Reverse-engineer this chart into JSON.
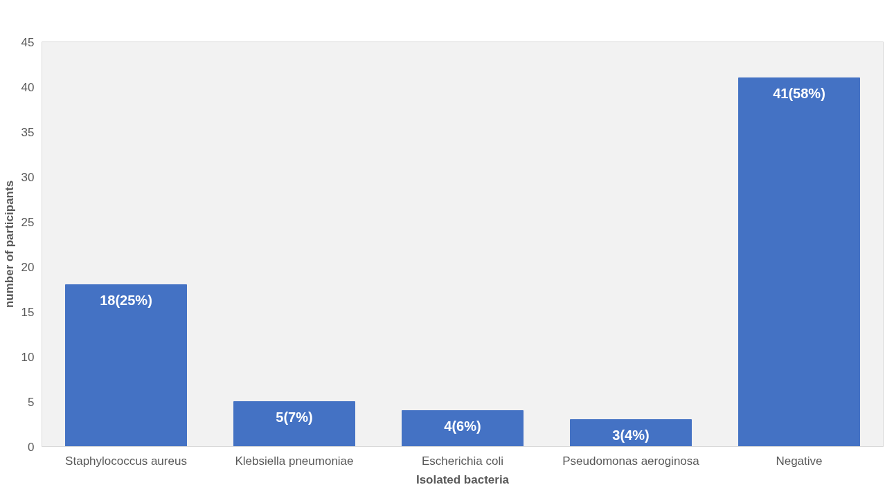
{
  "chart_data": {
    "type": "bar",
    "xlabel": "Isolated bacteria",
    "ylabel": "number of participants",
    "categories": [
      "Staphylococcus aureus",
      "Klebsiella pneumoniae",
      "Escherichia coli",
      "Pseudomonas aeroginosa",
      "Negative"
    ],
    "values": [
      18,
      5,
      4,
      3,
      41
    ],
    "value_labels": [
      "18(25%)",
      "5(7%)",
      "4(6%)",
      "3(4%)",
      "41(58%)"
    ],
    "color": "#4472c4",
    "ylim": [
      0,
      45
    ],
    "yticks": [
      0,
      5,
      10,
      15,
      20,
      25,
      30,
      35,
      40,
      45
    ],
    "grid": false
  }
}
